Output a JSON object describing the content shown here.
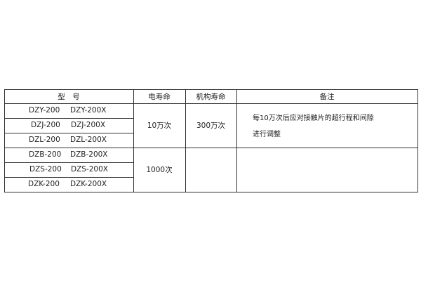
{
  "headers": {
    "model": "型　号",
    "electrical_life": "电寿命",
    "mechanical_life": "机构寿命",
    "remarks": "备注"
  },
  "rows": [
    {
      "model_a": "DZY-200",
      "model_b": "DZY-200X"
    },
    {
      "model_a": "DZJ-200",
      "model_b": "DZJ-200X"
    },
    {
      "model_a": "DZL-200",
      "model_b": "DZL-200X"
    },
    {
      "model_a": "DZB-200",
      "model_b": "DZB-200X"
    },
    {
      "model_a": "DZS-200",
      "model_b": "DZS-200X"
    },
    {
      "model_a": "DZK-200",
      "model_b": "DZK-200X"
    }
  ],
  "groups": [
    {
      "electrical_life": "10万次",
      "mechanical_life": "300万次",
      "remark_line1": "每10万次后应对接触片的超行程和间隙",
      "remark_line2": "进行调整"
    },
    {
      "electrical_life": "1000次",
      "mechanical_life": "",
      "remark_line1": "",
      "remark_line2": ""
    }
  ]
}
